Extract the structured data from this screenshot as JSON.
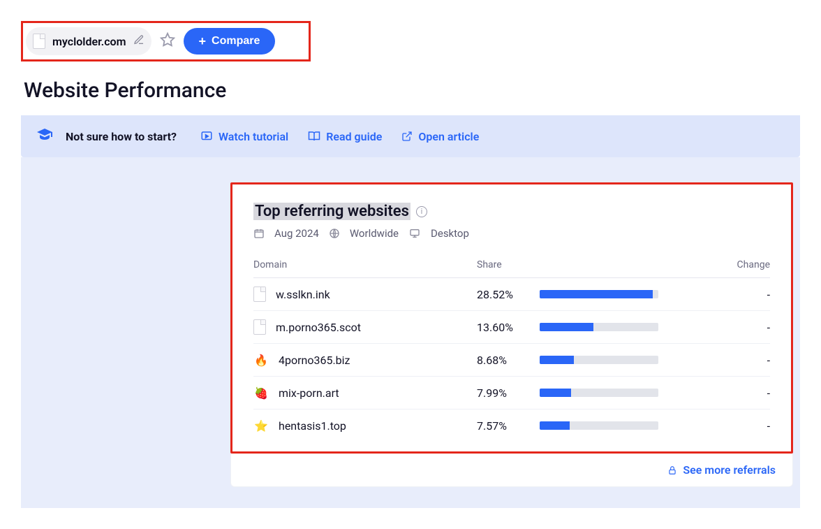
{
  "colors": {
    "accent": "#2a66f7",
    "highlight_border": "#e4261b",
    "banner_bg": "#dde5fb",
    "bar_bg": "#e2e4ea",
    "bar_fill": "#2a66f7",
    "title_highlight_bg": "#d8d8de"
  },
  "topbar": {
    "domain": "myclolder.com",
    "compare_label": "Compare"
  },
  "page_title": "Website Performance",
  "help": {
    "question": "Not sure how to start?",
    "watch": "Watch tutorial",
    "read": "Read guide",
    "open": "Open article"
  },
  "card": {
    "title": "Top referring websites",
    "meta": {
      "date": "Aug 2024",
      "region": "Worldwide",
      "device": "Desktop"
    },
    "columns": {
      "domain": "Domain",
      "share": "Share",
      "change": "Change"
    },
    "bar_max_percent": 30,
    "rows": [
      {
        "icon": "generic",
        "domain": "w.sslkn.ink",
        "share_text": "28.52%",
        "share_value": 28.52,
        "change": "-"
      },
      {
        "icon": "generic",
        "domain": "m.porno365.scot",
        "share_text": "13.60%",
        "share_value": 13.6,
        "change": "-"
      },
      {
        "icon": "flames",
        "domain": "4porno365.biz",
        "share_text": "8.68%",
        "share_value": 8.68,
        "change": "-"
      },
      {
        "icon": "berry",
        "domain": "mix-porn.art",
        "share_text": "7.99%",
        "share_value": 7.99,
        "change": "-"
      },
      {
        "icon": "star",
        "domain": "hentasis1.top",
        "share_text": "7.57%",
        "share_value": 7.57,
        "change": "-"
      }
    ],
    "footer_link": "See more referrals"
  }
}
